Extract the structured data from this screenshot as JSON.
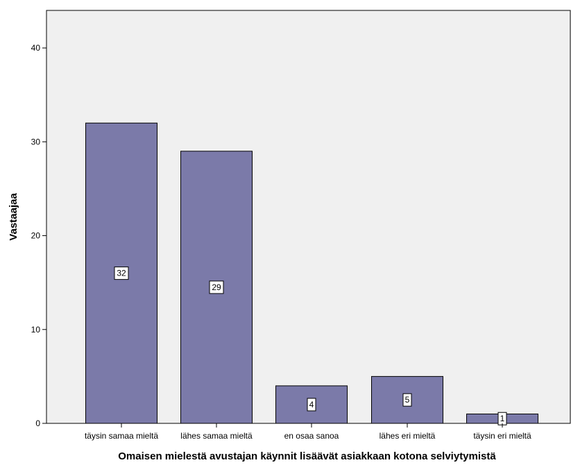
{
  "chart_data": {
    "type": "bar",
    "title": "",
    "xlabel": "Omaisen mielestä avustajan käynnit lisäävät asiakkaan kotona selviytymistä",
    "ylabel": "Vastaajaa",
    "categories": [
      "täysin samaa mieltä",
      "lähes samaa mieltä",
      "en osaa sanoa",
      "lähes eri mieltä",
      "täysin eri mieltä"
    ],
    "values": [
      32,
      29,
      4,
      5,
      1
    ],
    "data_labels": [
      "32",
      "29",
      "4",
      "5",
      "1"
    ],
    "yticks": [
      0,
      10,
      20,
      30,
      40
    ],
    "ytick_labels": [
      "0",
      "10",
      "20",
      "30",
      "40"
    ],
    "ylim": [
      0,
      44
    ],
    "grid": false,
    "legend": "none",
    "colors": {
      "plot_background": "#f0f0f0",
      "bar_fill": "#7b7aa9",
      "bar_stroke": "#000000",
      "label_box_fill": "#ffffff"
    }
  }
}
